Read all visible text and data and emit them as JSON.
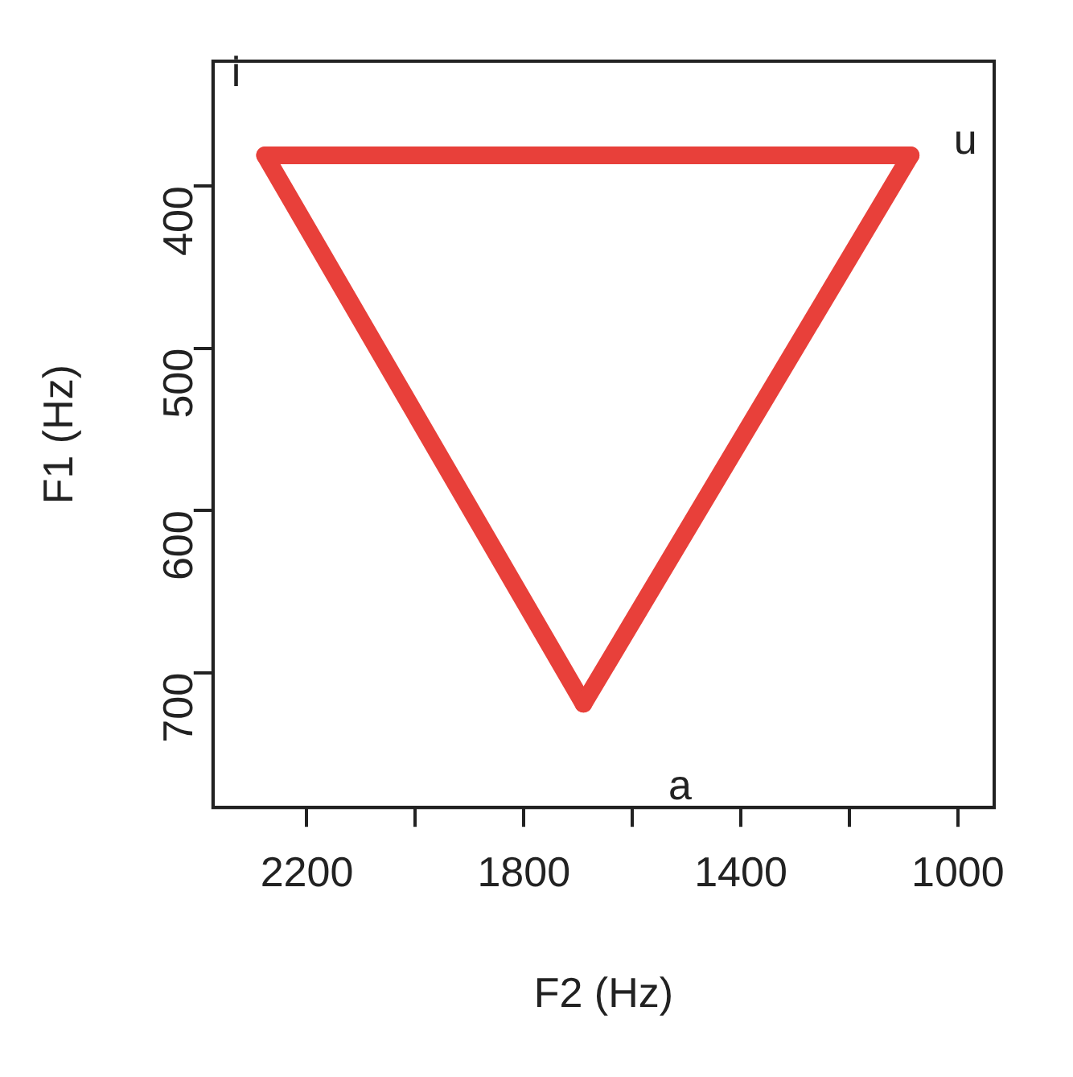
{
  "chart_data": {
    "type": "line",
    "xlabel": "F2 (Hz)",
    "ylabel": "F1 (Hz)",
    "series": [
      {
        "color": "#e8403a",
        "x": [
          2277,
          1087
        ],
        "values": [
          381,
          381
        ]
      },
      {
        "color": "#e8403a",
        "x": [
          1087,
          1690
        ],
        "values": [
          381,
          719
        ]
      },
      {
        "color": "#e8403a",
        "x": [
          1690,
          2277
        ],
        "values": [
          719,
          381
        ]
      }
    ],
    "xlim": [
      2373,
      933
    ],
    "xticks": [
      2200,
      {
        "value": 2000,
        "label": null
      },
      1800,
      {
        "value": 1600,
        "label": null
      },
      1400,
      {
        "value": 1200,
        "label": null
      },
      1000
    ],
    "ylim": [
      783,
      323
    ],
    "yticks": [
      400,
      500,
      600,
      700
    ],
    "annotations": [
      "i",
      "u",
      "a"
    ],
    "grid": false,
    "marker": "none",
    "line_style": "solid"
  }
}
